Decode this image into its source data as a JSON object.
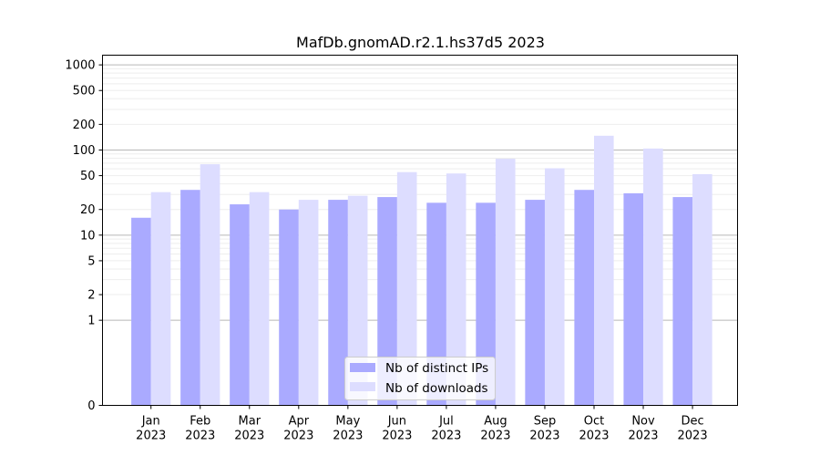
{
  "chart_data": {
    "type": "bar",
    "title": "MafDb.gnomAD.r2.1.hs37d5 2023",
    "xlabel": "",
    "ylabel": "",
    "categories": [
      "Jan\n2023",
      "Feb\n2023",
      "Mar\n2023",
      "Apr\n2023",
      "May\n2023",
      "Jun\n2023",
      "Jul\n2023",
      "Aug\n2023",
      "Sep\n2023",
      "Oct\n2023",
      "Nov\n2023",
      "Dec\n2023"
    ],
    "series": [
      {
        "name": "Nb of distinct IPs",
        "color": "#aaaaff",
        "values": [
          16,
          34,
          23,
          20,
          26,
          28,
          24,
          24,
          26,
          34,
          31,
          28
        ]
      },
      {
        "name": "Nb of downloads",
        "color": "#ddddff",
        "values": [
          32,
          68,
          32,
          26,
          29,
          55,
          53,
          79,
          61,
          147,
          104,
          52
        ]
      }
    ],
    "yscale": "symlog",
    "ylim": [
      0,
      1300
    ],
    "yticks": [
      0,
      1,
      2,
      5,
      10,
      20,
      50,
      100,
      200,
      500,
      1000
    ],
    "ytick_labels": [
      "0",
      "1",
      "2",
      "5",
      "10",
      "20",
      "50",
      "100",
      "200",
      "500",
      "1000"
    ],
    "grid": true,
    "legend_position": "lower center"
  }
}
